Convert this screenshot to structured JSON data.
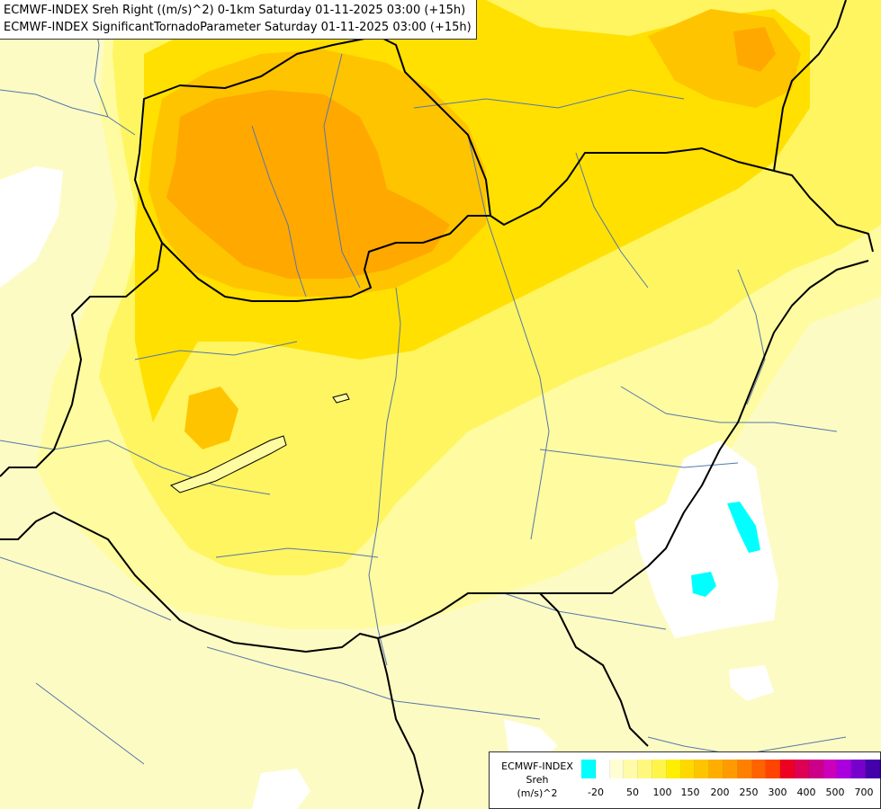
{
  "header": {
    "line1": "ECMWF-INDEX Sreh Right ((m/s)^2) 0-1km Saturday 01-11-2025 03:00 (+15h)",
    "line2": "ECMWF-INDEX SignificantTornadoParameter Saturday 01-11-2025 03:00 (+15h)"
  },
  "legend": {
    "title_line1": "ECMWF-INDEX",
    "title_line2": "Sreh",
    "title_line3": "(m/s)^2",
    "swatches": [
      "#00ffff",
      "#ffffff",
      "#fffed2",
      "#fffba8",
      "#fff87c",
      "#fff54a",
      "#ffee00",
      "#ffd800",
      "#ffc400",
      "#ffae00",
      "#ff9a00",
      "#ff8000",
      "#ff6200",
      "#ff4400",
      "#ee0022",
      "#dd0055",
      "#cc0088",
      "#cc00bb",
      "#aa00dd",
      "#7700cc",
      "#4400aa",
      "#1a0088",
      "#000077"
    ],
    "ticks": [
      "-20",
      "50",
      "100",
      "150",
      "200",
      "250",
      "300",
      "400",
      "500",
      "700"
    ]
  },
  "map_colors": {
    "base": "#fdfbc4",
    "light_yellow": "#fffba0",
    "yellow": "#fff560",
    "strong_yellow": "#ffe000",
    "orange_light": "#ffc400",
    "orange": "#ffa800",
    "white_area": "#ffffff",
    "cyan": "#00ffff",
    "border": "#000000",
    "river": "#5577aa"
  }
}
